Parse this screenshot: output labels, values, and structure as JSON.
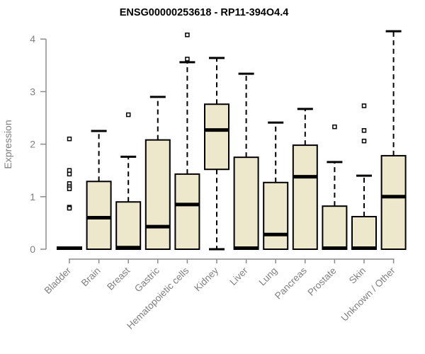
{
  "title": "ENSG00000253618 - RP11-394O4.4",
  "chart_data": {
    "type": "boxplot",
    "title": "ENSG00000253618 - RP11-394O4.4",
    "xlabel": "",
    "ylabel": "Expression",
    "ylim": [
      0,
      4.2
    ],
    "yticks": [
      "0",
      "1",
      "2",
      "3",
      "4"
    ],
    "grid": false,
    "legend": "none",
    "colors": {
      "box_fill": "#EDE8CC",
      "box_border": "#000000",
      "median": "#000000",
      "whisker": "#000000",
      "axis": "#8C8C8C",
      "tick_label": "#7F7F7F",
      "title": "#000000",
      "background": "#FFFFFF"
    },
    "categories": [
      "Bladder",
      "Brain",
      "Breast",
      "Gastric",
      "Hematopoietic cells",
      "Kidney",
      "Liver",
      "Lung",
      "Pancreas",
      "Prostate",
      "Skin",
      "Unknown / Other"
    ],
    "series": [
      {
        "name": "Bladder",
        "whisker_low": 0,
        "q1": 0,
        "median": 0.02,
        "q3": 0.04,
        "whisker_high": 0.04,
        "outliers": [
          2.1,
          1.5,
          1.43,
          1.25,
          1.19,
          1.15,
          0.8,
          0.78
        ]
      },
      {
        "name": "Brain",
        "whisker_low": 0,
        "q1": 0,
        "median": 0.6,
        "q3": 1.29,
        "whisker_high": 2.25,
        "outliers": []
      },
      {
        "name": "Breast",
        "whisker_low": 0,
        "q1": 0,
        "median": 0.03,
        "q3": 0.9,
        "whisker_high": 1.76,
        "outliers": [
          2.56
        ]
      },
      {
        "name": "Gastric",
        "whisker_low": 0,
        "q1": 0,
        "median": 0.43,
        "q3": 2.08,
        "whisker_high": 2.9,
        "outliers": []
      },
      {
        "name": "Hematopoietic cells",
        "whisker_low": 0,
        "q1": 0,
        "median": 0.85,
        "q3": 1.43,
        "whisker_high": 3.56,
        "outliers": [
          4.08,
          3.62
        ]
      },
      {
        "name": "Kidney",
        "whisker_low": 0,
        "q1": 1.52,
        "median": 2.27,
        "q3": 2.76,
        "whisker_high": 3.64,
        "outliers": []
      },
      {
        "name": "Liver",
        "whisker_low": 0,
        "q1": 0,
        "median": 0.02,
        "q3": 1.75,
        "whisker_high": 3.34,
        "outliers": []
      },
      {
        "name": "Lung",
        "whisker_low": 0,
        "q1": 0,
        "median": 0.28,
        "q3": 1.27,
        "whisker_high": 2.41,
        "outliers": []
      },
      {
        "name": "Pancreas",
        "whisker_low": 0,
        "q1": 0,
        "median": 1.38,
        "q3": 1.98,
        "whisker_high": 2.67,
        "outliers": []
      },
      {
        "name": "Prostate",
        "whisker_low": 0,
        "q1": 0,
        "median": 0.02,
        "q3": 0.82,
        "whisker_high": 1.66,
        "outliers": [
          2.33
        ]
      },
      {
        "name": "Skin",
        "whisker_low": 0,
        "q1": 0,
        "median": 0.02,
        "q3": 0.62,
        "whisker_high": 1.4,
        "outliers": [
          2.73,
          2.26,
          2.06
        ]
      },
      {
        "name": "Unknown / Other",
        "whisker_low": 0,
        "q1": 0,
        "median": 1.0,
        "q3": 1.78,
        "whisker_high": 4.15,
        "outliers": []
      }
    ]
  }
}
